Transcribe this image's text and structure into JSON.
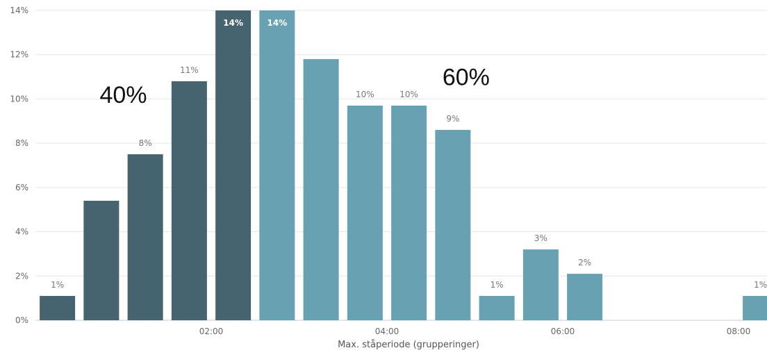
{
  "chart_data": {
    "type": "bar",
    "title": "",
    "xlabel": "Max. ståperiode (grupperinger)",
    "ylabel": "",
    "ylim": [
      0,
      14
    ],
    "yticks": [
      0,
      2,
      4,
      6,
      8,
      10,
      12,
      14
    ],
    "ytick_labels": [
      "0%",
      "2%",
      "4%",
      "6%",
      "8%",
      "10%",
      "12%",
      "14%"
    ],
    "x_range_hours": [
      0,
      8.5
    ],
    "xticks": [
      2,
      4,
      6,
      8
    ],
    "xtick_labels": [
      "02:00",
      "04:00",
      "06:00",
      "08:00"
    ],
    "grid": true,
    "colors": {
      "group1": "#45646f",
      "group2": "#68a1b2",
      "grid": "#e6e6e6"
    },
    "bars": [
      {
        "x": 0.25,
        "value": 1.1,
        "label": "1%",
        "group": "group1"
      },
      {
        "x": 0.75,
        "value": 5.4,
        "label": "",
        "group": "group1"
      },
      {
        "x": 1.25,
        "value": 7.5,
        "label": "8%",
        "group": "group1"
      },
      {
        "x": 1.75,
        "value": 10.8,
        "label": "11%",
        "group": "group1"
      },
      {
        "x": 2.25,
        "value": 14.0,
        "label": "14%",
        "group": "group1"
      },
      {
        "x": 2.75,
        "value": 14.0,
        "label": "14%",
        "group": "group2"
      },
      {
        "x": 3.25,
        "value": 11.8,
        "label": "",
        "group": "group2"
      },
      {
        "x": 3.75,
        "value": 9.7,
        "label": "10%",
        "group": "group2"
      },
      {
        "x": 4.25,
        "value": 9.7,
        "label": "10%",
        "group": "group2"
      },
      {
        "x": 4.75,
        "value": 8.6,
        "label": "9%",
        "group": "group2"
      },
      {
        "x": 5.25,
        "value": 1.1,
        "label": "1%",
        "group": "group2"
      },
      {
        "x": 5.75,
        "value": 3.2,
        "label": "3%",
        "group": "group2"
      },
      {
        "x": 6.25,
        "value": 2.1,
        "label": "2%",
        "group": "group2"
      },
      {
        "x": 8.25,
        "value": 1.1,
        "label": "1%",
        "group": "group2"
      }
    ],
    "annotations": [
      {
        "text": "40%",
        "x": 1.0,
        "y": 10.2
      },
      {
        "text": "60%",
        "x": 4.9,
        "y": 11.0
      }
    ]
  }
}
